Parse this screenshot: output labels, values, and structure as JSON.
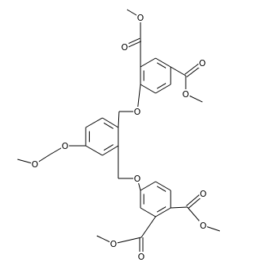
{
  "atoms": [
    {
      "label": "O"
    },
    {
      "label": "O"
    },
    {
      "label": "O"
    },
    {
      "label": "O"
    },
    {
      "label": "O"
    },
    {
      "label": "O"
    },
    {
      "label": "O"
    },
    {
      "label": "O"
    },
    {
      "label": "O"
    },
    {
      "label": "O"
    },
    {
      "label": "O"
    },
    {
      "label": "O"
    }
  ]
}
